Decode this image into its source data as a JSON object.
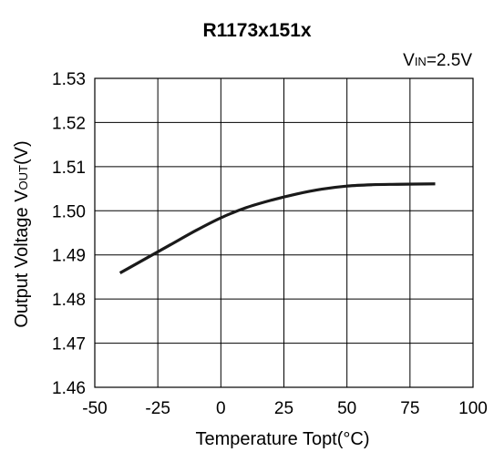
{
  "chart_data": {
    "type": "line",
    "title": "R1173x151x",
    "condition": {
      "main": "V",
      "sub": "IN",
      "rest": "=2.5V"
    },
    "xlabel": {
      "main": "Temperature Topt(",
      "unit": "°C",
      "close": ")"
    },
    "ylabel": {
      "main": "Output Voltage V",
      "sub": "OUT",
      "rest": "(V)"
    },
    "xlim": [
      -50,
      100
    ],
    "ylim": [
      1.46,
      1.53
    ],
    "x_ticks": [
      -50,
      -25,
      0,
      25,
      50,
      75,
      100
    ],
    "x_tick_labels": [
      "-50",
      "-25",
      "0",
      "25",
      "50",
      "75",
      "100"
    ],
    "y_ticks": [
      1.46,
      1.47,
      1.48,
      1.49,
      1.5,
      1.51,
      1.52,
      1.53
    ],
    "y_tick_labels": [
      "1.46",
      "1.47",
      "1.48",
      "1.49",
      "1.50",
      "1.51",
      "1.52",
      "1.53"
    ],
    "grid": true,
    "series": [
      {
        "x": [
          -40,
          -30,
          -20,
          -10,
          0,
          10,
          20,
          30,
          40,
          50,
          60,
          70,
          85
        ],
        "y": [
          1.4859,
          1.4891,
          1.4923,
          1.4955,
          1.4984,
          1.5007,
          1.5024,
          1.5038,
          1.5049,
          1.5056,
          1.5059,
          1.506,
          1.5061
        ],
        "color": "#1a1a1a"
      }
    ]
  }
}
